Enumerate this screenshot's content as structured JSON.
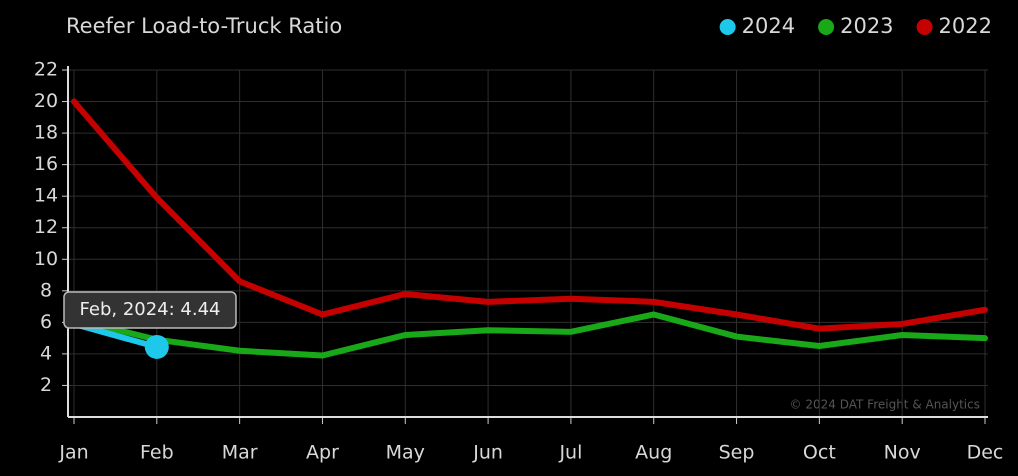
{
  "chart_data": {
    "type": "line",
    "title": "Reefer Load-to-Truck Ratio",
    "categories": [
      "Jan",
      "Feb",
      "Mar",
      "Apr",
      "May",
      "Jun",
      "Jul",
      "Aug",
      "Sep",
      "Oct",
      "Nov",
      "Dec"
    ],
    "series": [
      {
        "name": "2024",
        "color": "#1ec8ea",
        "values": [
          5.9,
          4.44,
          null,
          null,
          null,
          null,
          null,
          null,
          null,
          null,
          null,
          null
        ]
      },
      {
        "name": "2023",
        "color": "#18a818",
        "values": [
          6.2,
          4.9,
          4.2,
          3.9,
          5.2,
          5.5,
          5.4,
          6.5,
          5.1,
          4.5,
          5.2,
          5.0
        ]
      },
      {
        "name": "2022",
        "color": "#c40000",
        "values": [
          20,
          13.9,
          8.6,
          6.5,
          7.8,
          7.3,
          7.5,
          7.3,
          6.5,
          5.6,
          5.9,
          6.8
        ]
      }
    ],
    "ylim": [
      0,
      22
    ],
    "yticks": [
      2,
      4,
      6,
      8,
      10,
      12,
      14,
      16,
      18,
      20,
      22
    ],
    "grid": true,
    "legend": "top-right",
    "tooltip": "Feb, 2024: 4.44",
    "annotation": "© 2024 DAT Freight & Analytics"
  }
}
